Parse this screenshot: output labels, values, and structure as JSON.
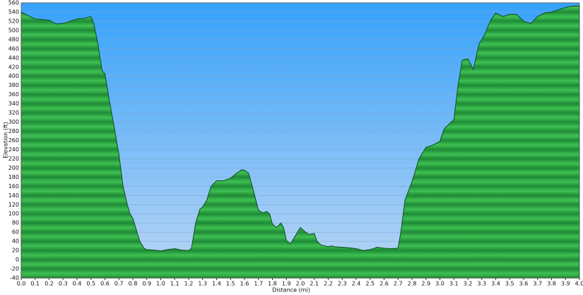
{
  "chart_data": {
    "type": "area",
    "x_label": "Distance   (mi)",
    "y_label": "Elevation (ft)",
    "x": [
      0.0,
      0.05,
      0.1,
      0.15,
      0.2,
      0.25,
      0.3,
      0.35,
      0.4,
      0.45,
      0.5,
      0.52,
      0.55,
      0.58,
      0.6,
      0.63,
      0.66,
      0.7,
      0.73,
      0.76,
      0.78,
      0.8,
      0.82,
      0.85,
      0.88,
      0.9,
      0.95,
      1.0,
      1.05,
      1.1,
      1.15,
      1.2,
      1.22,
      1.25,
      1.28,
      1.3,
      1.33,
      1.36,
      1.4,
      1.45,
      1.5,
      1.55,
      1.58,
      1.6,
      1.63,
      1.66,
      1.7,
      1.73,
      1.76,
      1.78,
      1.8,
      1.83,
      1.86,
      1.88,
      1.9,
      1.93,
      1.96,
      2.0,
      2.03,
      2.06,
      2.1,
      2.12,
      2.15,
      2.2,
      2.22,
      2.25,
      2.3,
      2.35,
      2.4,
      2.45,
      2.5,
      2.55,
      2.6,
      2.65,
      2.7,
      2.72,
      2.75,
      2.8,
      2.85,
      2.9,
      2.95,
      3.0,
      3.03,
      3.08,
      3.1,
      3.13,
      3.16,
      3.2,
      3.24,
      3.28,
      3.32,
      3.36,
      3.4,
      3.45,
      3.5,
      3.55,
      3.6,
      3.65,
      3.7,
      3.75,
      3.8,
      3.85,
      3.9,
      3.95,
      4.0
    ],
    "values": [
      540,
      532,
      525,
      524,
      522,
      514,
      515,
      520,
      525,
      526,
      530,
      515,
      470,
      412,
      405,
      350,
      300,
      230,
      160,
      120,
      100,
      90,
      70,
      40,
      25,
      22,
      21,
      19,
      22,
      24,
      21,
      20,
      25,
      80,
      110,
      115,
      130,
      160,
      172,
      172,
      178,
      190,
      196,
      195,
      188,
      155,
      108,
      102,
      105,
      100,
      78,
      70,
      80,
      70,
      42,
      35,
      50,
      70,
      62,
      55,
      57,
      40,
      32,
      28,
      30,
      28,
      27,
      26,
      24,
      20,
      22,
      27,
      25,
      24,
      25,
      60,
      130,
      170,
      220,
      245,
      250,
      258,
      285,
      300,
      305,
      380,
      435,
      438,
      415,
      470,
      490,
      520,
      538,
      530,
      535,
      535,
      520,
      515,
      530,
      538,
      540,
      545,
      550,
      553,
      553
    ],
    "color": "#2ea043",
    "xlim": [
      0,
      4
    ],
    "ylim": [
      -40,
      560
    ],
    "xticks": [
      {
        "value": 0,
        "label": "0.0"
      },
      0.1,
      0.2,
      0.3,
      0.4,
      0.5,
      0.6,
      0.7,
      0.8,
      0.9,
      {
        "value": 1,
        "label": "1.0"
      },
      1.1,
      1.2,
      1.3,
      1.4,
      1.5,
      1.6,
      1.7,
      1.8,
      1.9,
      {
        "value": 2,
        "label": "2.0"
      },
      2.1,
      2.2,
      2.3,
      2.4,
      2.5,
      2.6,
      2.7,
      2.8,
      2.9,
      {
        "value": 3,
        "label": "3.0"
      },
      3.1,
      3.2,
      3.3,
      3.4,
      3.5,
      3.6,
      3.7,
      3.8,
      3.9,
      {
        "value": 4,
        "label": "4.0"
      }
    ],
    "yticks": [
      -40,
      -20,
      0,
      20,
      40,
      60,
      80,
      100,
      120,
      140,
      160,
      180,
      200,
      220,
      240,
      260,
      280,
      300,
      320,
      340,
      360,
      380,
      400,
      420,
      440,
      460,
      480,
      500,
      520,
      540,
      560
    ],
    "grid": true
  }
}
